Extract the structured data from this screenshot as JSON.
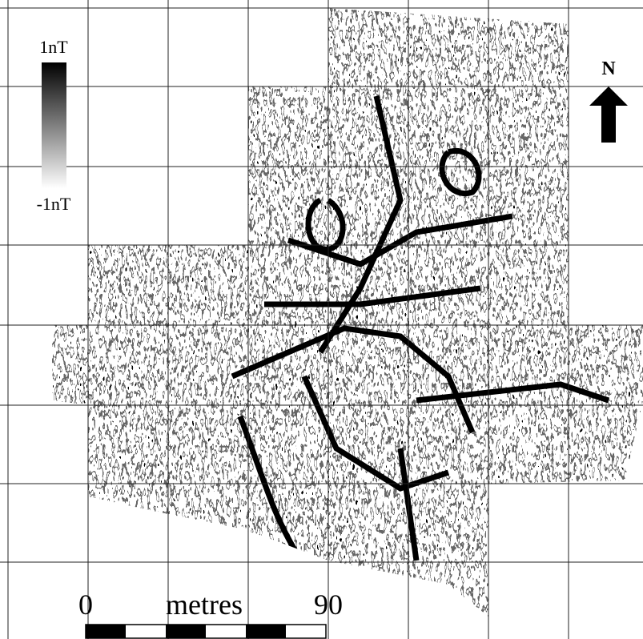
{
  "legend": {
    "max_label": "1nT",
    "min_label": "-1nT"
  },
  "north_label": "N",
  "scale_bar": {
    "start_label": "0",
    "unit_label": "metres",
    "end_label": "90"
  }
}
